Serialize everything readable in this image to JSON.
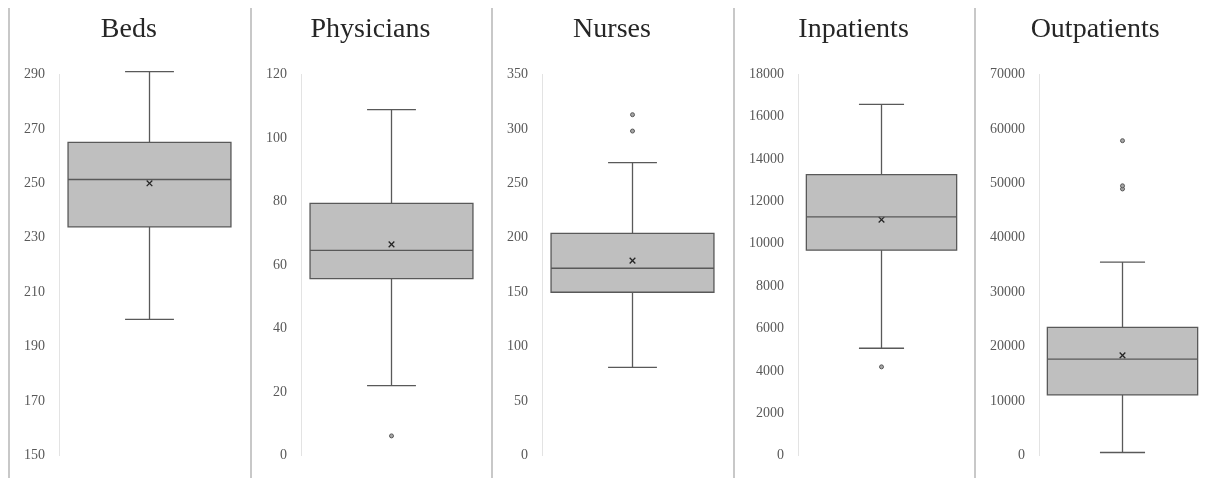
{
  "chart_data": [
    {
      "type": "box",
      "title": "Beds",
      "categories": [
        null
      ],
      "color": "#bfbfbf",
      "ylim": [
        150,
        290
      ],
      "yticks": [
        150,
        170,
        190,
        210,
        230,
        250,
        270,
        290
      ],
      "grid": false,
      "marker": "circle",
      "boxes": [
        {
          "low": 200,
          "q1": 234,
          "median": 251.4,
          "q3": 265,
          "high": 291,
          "mean": 250
        }
      ]
    },
    {
      "type": "box",
      "title": "Physicians",
      "categories": [
        null
      ],
      "color": "#bfbfbf",
      "ylim": [
        0,
        120
      ],
      "yticks": [
        0,
        20,
        40,
        60,
        80,
        100,
        120
      ],
      "grid": false,
      "marker": "circle",
      "boxes": [
        {
          "low": 22,
          "q1": 55.7,
          "median": 64.6,
          "q3": 79.4,
          "high": 108.9,
          "mean": 66.5,
          "outliers": [
            6.2
          ]
        }
      ]
    },
    {
      "type": "box",
      "title": "Nurses",
      "categories": [
        null
      ],
      "color": "#bfbfbf",
      "ylim": [
        0,
        350
      ],
      "yticks": [
        0,
        50,
        100,
        150,
        200,
        250,
        300,
        350
      ],
      "grid": false,
      "marker": "circle",
      "boxes": [
        {
          "low": 81,
          "q1": 150,
          "median": 172,
          "q3": 204,
          "high": 269,
          "mean": 179,
          "outliers": [
            298,
            313
          ]
        }
      ]
    },
    {
      "type": "box",
      "title": "Inpatients",
      "categories": [
        null
      ],
      "color": "#bfbfbf",
      "ylim": [
        0,
        18000
      ],
      "yticks": [
        0,
        2000,
        4000,
        6000,
        8000,
        10000,
        12000,
        14000,
        16000,
        18000
      ],
      "grid": false,
      "marker": "circle",
      "boxes": [
        {
          "low": 5070,
          "q1": 9700,
          "median": 11270,
          "q3": 13270,
          "high": 16580,
          "mean": 11140,
          "outliers": [
            4190
          ]
        }
      ]
    },
    {
      "type": "box",
      "title": "Outpatients",
      "categories": [
        null
      ],
      "color": "#bfbfbf",
      "ylim": [
        0,
        70000
      ],
      "yticks": [
        0,
        10000,
        20000,
        30000,
        40000,
        50000,
        60000,
        70000
      ],
      "grid": false,
      "marker": "circle",
      "boxes": [
        {
          "low": 570,
          "q1": 11140,
          "median": 17710,
          "q3": 23540,
          "high": 35540,
          "mean": 18400,
          "outliers": [
            48970,
            49540,
            57830
          ]
        }
      ]
    }
  ]
}
